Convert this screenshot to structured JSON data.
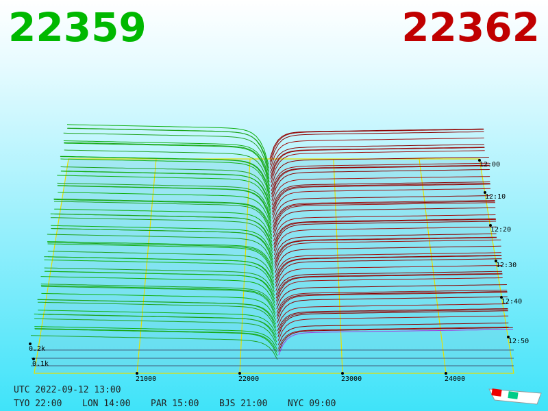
{
  "header": {
    "bid": "22359",
    "ask": "22362"
  },
  "price_labels": [
    "21000",
    "22000",
    "23000",
    "24000"
  ],
  "time_labels": [
    "12:00",
    "12:10",
    "12:20",
    "12:30",
    "12:40",
    "12:50"
  ],
  "depth_labels": [
    "0.2k",
    "0.1k"
  ],
  "footer": {
    "utc": "UTC 2022-09-12 13:00",
    "zones": [
      "TYO 22:00",
      "LON 14:00",
      "PAR 15:00",
      "BJS 21:00",
      "NYC 09:00"
    ]
  }
}
